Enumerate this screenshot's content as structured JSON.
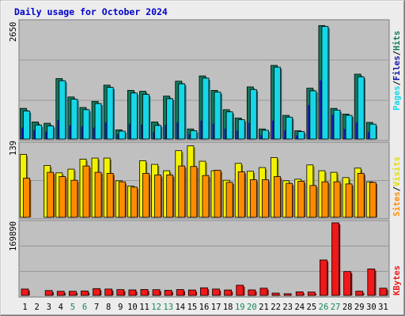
{
  "title": "Daily usage for October 2024",
  "colors": {
    "background": "#ececec",
    "panel": "#c0c0c0",
    "title": "#0000cc",
    "hits": "#127a5c",
    "files": "#1414a8",
    "pages": "#16d6e8",
    "visits": "#f2f200",
    "sites": "#ff8c00",
    "kbytes": "#f01818",
    "weekend_day": "#118a55"
  },
  "chart_data": [
    {
      "type": "bar",
      "name": "hits-files-pages",
      "ymax_label": "2650",
      "ylim": [
        0,
        2650
      ],
      "legend": [
        "Pages",
        "Files",
        "Hits"
      ],
      "legend_placement": "right",
      "series": [
        {
          "name": "Hits",
          "values": [
            700,
            390,
            360,
            1380,
            960,
            720,
            860,
            1230,
            210,
            1110,
            1090,
            390,
            980,
            1320,
            230,
            1440,
            1110,
            670,
            480,
            1190,
            230,
            1680,
            540,
            190,
            1160,
            2590,
            700,
            570,
            1480,
            380,
            0
          ]
        },
        {
          "name": "Files",
          "values": [
            260,
            200,
            170,
            430,
            310,
            290,
            260,
            380,
            110,
            350,
            330,
            160,
            320,
            380,
            110,
            420,
            350,
            240,
            190,
            370,
            90,
            420,
            200,
            80,
            770,
            1340,
            550,
            230,
            380,
            160,
            0
          ]
        },
        {
          "name": "Pages",
          "values": [
            640,
            320,
            300,
            1330,
            910,
            670,
            810,
            1180,
            180,
            1050,
            1020,
            310,
            920,
            1260,
            190,
            1390,
            1070,
            620,
            440,
            1130,
            200,
            1640,
            500,
            170,
            1100,
            2570,
            660,
            540,
            1420,
            340,
            0
          ]
        }
      ],
      "categories": [
        "1",
        "2",
        "3",
        "4",
        "5",
        "6",
        "7",
        "8",
        "9",
        "10",
        "11",
        "12",
        "13",
        "14",
        "15",
        "16",
        "17",
        "18",
        "19",
        "20",
        "21",
        "22",
        "23",
        "24",
        "25",
        "26",
        "27",
        "28",
        "29",
        "30",
        "31"
      ]
    },
    {
      "type": "bar",
      "name": "visits-sites",
      "ymax_label": "139",
      "ylim": [
        0,
        139
      ],
      "legend": [
        "Sites",
        "Visits"
      ],
      "legend_placement": "right",
      "series": [
        {
          "name": "Visits",
          "values": [
            119,
            0,
            98,
            84,
            91,
            110,
            112,
            112,
            69,
            59,
            107,
            100,
            88,
            126,
            135,
            106,
            88,
            70,
            102,
            87,
            94,
            113,
            69,
            72,
            99,
            88,
            85,
            75,
            93,
            67,
            0
          ]
        },
        {
          "name": "Sites",
          "values": [
            74,
            0,
            85,
            77,
            70,
            97,
            85,
            83,
            67,
            57,
            83,
            80,
            80,
            97,
            96,
            79,
            89,
            66,
            86,
            71,
            71,
            77,
            64,
            68,
            60,
            67,
            67,
            63,
            83,
            66,
            0
          ]
        }
      ],
      "categories": [
        "1",
        "2",
        "3",
        "4",
        "5",
        "6",
        "7",
        "8",
        "9",
        "10",
        "11",
        "12",
        "13",
        "14",
        "15",
        "16",
        "17",
        "18",
        "19",
        "20",
        "21",
        "22",
        "23",
        "24",
        "25",
        "26",
        "27",
        "28",
        "29",
        "30",
        "31"
      ]
    },
    {
      "type": "bar",
      "name": "kbytes",
      "ymax_label": "169890",
      "ylim": [
        0,
        169890
      ],
      "legend": [
        "KBytes"
      ],
      "legend_placement": "right",
      "series": [
        {
          "name": "KBytes",
          "values": [
            15000,
            0,
            11500,
            9800,
            9800,
            10500,
            16000,
            15000,
            13700,
            13000,
            14000,
            13500,
            12000,
            13800,
            12800,
            18000,
            15000,
            12800,
            24000,
            13000,
            17000,
            5500,
            4000,
            8500,
            8000,
            83000,
            169890,
            56000,
            10000,
            62000,
            17000
          ]
        }
      ],
      "categories": [
        "1",
        "2",
        "3",
        "4",
        "5",
        "6",
        "7",
        "8",
        "9",
        "10",
        "11",
        "12",
        "13",
        "14",
        "15",
        "16",
        "17",
        "18",
        "19",
        "20",
        "21",
        "22",
        "23",
        "24",
        "25",
        "26",
        "27",
        "28",
        "29",
        "30",
        "31"
      ]
    }
  ],
  "x_axis": {
    "labels": [
      "1",
      "2",
      "3",
      "4",
      "5",
      "6",
      "7",
      "8",
      "9",
      "10",
      "11",
      "12",
      "13",
      "14",
      "15",
      "16",
      "17",
      "18",
      "19",
      "20",
      "21",
      "22",
      "23",
      "24",
      "25",
      "26",
      "27",
      "28",
      "29",
      "30",
      "31"
    ],
    "weekend_days": [
      "5",
      "6",
      "12",
      "13",
      "19",
      "20",
      "26",
      "27"
    ]
  }
}
